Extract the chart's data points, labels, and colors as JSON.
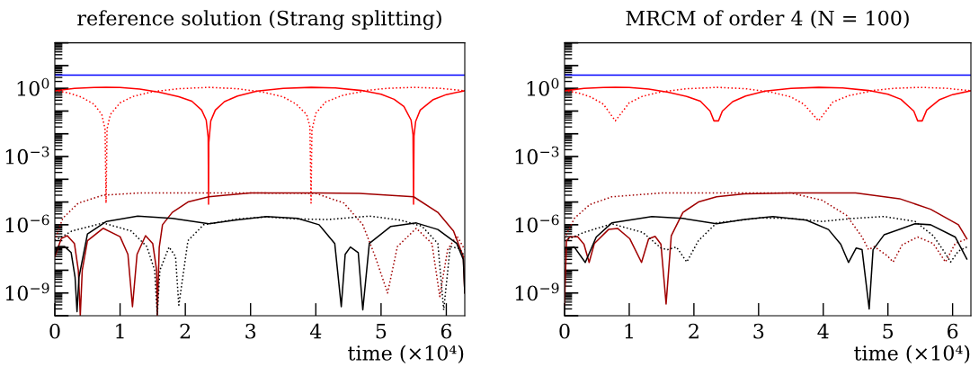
{
  "chart_data": [
    {
      "type": "line",
      "title": "reference solution (Strang splitting)",
      "xlabel": "time (×10⁴)",
      "log": "y",
      "xlim": [
        0,
        6.283
      ],
      "xticks": [
        0,
        1,
        2,
        3,
        4,
        5,
        6
      ],
      "ylim": [
        1e-10,
        100
      ],
      "yticks": [
        {
          "value": 1e-10,
          "label": null
        },
        {
          "value": 1e-09,
          "label": "10$^{−9}$"
        },
        {
          "value": 1e-08,
          "label": null
        },
        {
          "value": 1e-07,
          "label": null
        },
        {
          "value": 1e-06,
          "label": "10$^{−6}$"
        },
        {
          "value": 1e-05,
          "label": null
        },
        {
          "value": 0.0001,
          "label": null
        },
        {
          "value": 0.001,
          "label": "10$^{−3}$"
        },
        {
          "value": 0.01,
          "label": null
        },
        {
          "value": 0.1,
          "label": null
        },
        {
          "value": 1,
          "label": "10$^{0}$"
        },
        {
          "value": 10,
          "label": null
        },
        {
          "value": 100,
          "label": null
        }
      ],
      "series": [
        {
          "color": "#0000ff",
          "line_style": "solid",
          "x": [
            0,
            6.283
          ],
          "values": [
            3.8,
            3.8
          ]
        },
        {
          "color": "#ff0000",
          "line_style": "solid",
          "x": [
            0,
            0.3,
            0.6,
            0.785,
            1.0,
            1.3,
            1.6,
            1.9,
            2.1,
            2.25,
            2.32,
            2.35,
            2.356,
            2.36,
            2.39,
            2.46,
            2.6,
            2.8,
            3.1,
            3.5,
            3.93,
            4.3,
            4.7,
            5.0,
            5.2,
            5.35,
            5.46,
            5.49,
            5.498,
            5.505,
            5.53,
            5.6,
            5.8,
            6.0,
            6.283
          ],
          "values": [
            0.78,
            1.0,
            1.09,
            1.1,
            1.08,
            0.92,
            0.68,
            0.43,
            0.27,
            0.11,
            0.04,
            0.007,
            8e-06,
            0.004,
            0.037,
            0.11,
            0.26,
            0.46,
            0.75,
            1.0,
            1.1,
            1.03,
            0.8,
            0.55,
            0.33,
            0.16,
            0.04,
            0.009,
            8e-06,
            0.008,
            0.035,
            0.11,
            0.32,
            0.53,
            0.78
          ]
        },
        {
          "color": "#ff0000",
          "line_style": "dotted",
          "x": [
            0,
            0.2,
            0.4,
            0.6,
            0.72,
            0.77,
            0.785,
            0.8,
            0.85,
            1.0,
            1.2,
            1.5,
            1.9,
            2.36,
            2.8,
            3.2,
            3.5,
            3.7,
            3.86,
            3.91,
            3.927,
            3.94,
            4.0,
            4.15,
            4.4,
            4.8,
            5.1,
            5.5,
            5.9,
            6.283
          ],
          "values": [
            0.78,
            0.64,
            0.42,
            0.2,
            0.07,
            0.016,
            9e-06,
            0.016,
            0.07,
            0.23,
            0.44,
            0.71,
            0.96,
            1.1,
            0.96,
            0.67,
            0.42,
            0.2,
            0.07,
            0.02,
            9e-06,
            0.014,
            0.08,
            0.25,
            0.48,
            0.82,
            1.0,
            1.1,
            1.0,
            0.78
          ]
        },
        {
          "color": "#a00000",
          "line_style": "solid",
          "x": [
            0,
            0.1,
            0.19,
            0.3,
            0.36,
            0.39,
            0.42,
            0.5,
            0.74,
            1.0,
            1.12,
            1.19,
            1.26,
            1.39,
            1.5,
            1.56,
            1.57,
            1.6,
            1.65,
            1.8,
            2.04,
            2.36,
            3.0,
            4.0,
            4.67,
            5.5,
            5.87,
            6.11,
            6.26,
            6.283
          ],
          "values": [
            4e-08,
            2.5e-07,
            3.3e-07,
            1.5e-07,
            1e-08,
            1e-10,
            1e-08,
            2e-07,
            7e-07,
            3e-07,
            5e-08,
            2.5e-10,
            5e-08,
            3.3e-07,
            1.5e-07,
            1e-08,
            1e-10,
            1e-07,
            1e-06,
            3.5e-06,
            1e-05,
            1.7e-05,
            2.5e-05,
            2.5e-05,
            2.4e-05,
            1.7e-05,
            3.5e-06,
            5.3e-07,
            4e-08,
            1e-09
          ]
        },
        {
          "color": "#a00000",
          "line_style": "dotted",
          "x": [
            0,
            0.12,
            0.36,
            0.74,
            1.3,
            2.0,
            3.0,
            4.0,
            4.43,
            4.72,
            4.91,
            5.1,
            5.25,
            5.54,
            5.78,
            5.9,
            6.02,
            6.16,
            6.283
          ],
          "values": [
            2e-07,
            1.9e-06,
            9e-06,
            2e-05,
            2.5e-05,
            2.5e-05,
            2.5e-05,
            2.4e-05,
            9e-06,
            1e-06,
            4e-08,
            1e-09,
            1.1e-07,
            7e-07,
            1.5e-07,
            7e-10,
            8e-08,
            3.3e-07,
            8e-08
          ]
        },
        {
          "color": "#000000",
          "line_style": "solid",
          "x": [
            0,
            0.05,
            0.15,
            0.25,
            0.31,
            0.34,
            0.37,
            0.5,
            0.79,
            1.27,
            1.8,
            2.36,
            2.76,
            3.24,
            3.72,
            4.05,
            4.29,
            4.39,
            4.45,
            4.53,
            4.65,
            4.72,
            4.82,
            5.15,
            5.54,
            5.87,
            6.16,
            6.26,
            6.283
          ],
          "values": [
            5e-08,
            1.1e-07,
            1.1e-07,
            6e-08,
            5e-09,
            1.5e-10,
            5e-09,
            3.9e-07,
            1.4e-06,
            2.4e-06,
            1.9e-06,
            1.1e-06,
            1.6e-06,
            2.3e-06,
            1.9e-06,
            1e-06,
            1.5e-07,
            2.5e-10,
            5e-08,
            1.05e-07,
            6e-08,
            1.8e-10,
            1.5e-07,
            8.5e-07,
            1.2e-06,
            6.2e-07,
            1.5e-07,
            3e-08,
            1e-09
          ]
        },
        {
          "color": "#000000",
          "line_style": "dotted",
          "x": [
            0,
            0.26,
            0.74,
            1.17,
            1.41,
            1.53,
            1.57,
            1.61,
            1.75,
            1.85,
            1.9,
            2.04,
            2.28,
            2.8,
            3.24,
            3.72,
            4.19,
            4.82,
            5.3,
            5.63,
            5.87,
            5.96,
            6.06,
            6.2,
            6.283
          ],
          "values": [
            2e-07,
            5.3e-07,
            1.2e-06,
            5.3e-07,
            1.1e-07,
            1e-08,
            1.1e-10,
            1e-08,
            1.05e-07,
            4e-08,
            2.9e-10,
            2e-07,
            1e-06,
            1.8e-06,
            2.2e-06,
            1.8e-06,
            1.7e-06,
            2.4e-06,
            1.6e-06,
            8.5e-07,
            1.5e-07,
            1.8e-10,
            1.1e-07,
            9e-08,
            4e-08
          ]
        }
      ]
    },
    {
      "type": "line",
      "title": "MRCM of order 4 (N = 100)",
      "xlabel": "time (×10⁴)",
      "log": "y",
      "xlim": [
        0,
        6.283
      ],
      "xticks": [
        0,
        1,
        2,
        3,
        4,
        5,
        6
      ],
      "ylim": [
        1e-10,
        100
      ],
      "yticks": [
        {
          "value": 1e-10,
          "label": null
        },
        {
          "value": 1e-09,
          "label": "10$^{−9}$"
        },
        {
          "value": 1e-08,
          "label": null
        },
        {
          "value": 1e-07,
          "label": null
        },
        {
          "value": 1e-06,
          "label": "10$^{−6}$"
        },
        {
          "value": 1e-05,
          "label": null
        },
        {
          "value": 0.0001,
          "label": null
        },
        {
          "value": 0.001,
          "label": "10$^{−3}$"
        },
        {
          "value": 0.01,
          "label": null
        },
        {
          "value": 0.1,
          "label": null
        },
        {
          "value": 1,
          "label": "10$^{0}$"
        },
        {
          "value": 10,
          "label": null
        },
        {
          "value": 100,
          "label": null
        }
      ],
      "series": [
        {
          "color": "#0000ff",
          "line_style": "solid",
          "x": [
            0,
            6.283
          ],
          "values": [
            3.8,
            3.8
          ]
        },
        {
          "color": "#ff0000",
          "line_style": "solid",
          "x": [
            0,
            0.3,
            0.6,
            0.785,
            1.0,
            1.3,
            1.6,
            1.9,
            2.1,
            2.25,
            2.31,
            2.38,
            2.44,
            2.6,
            2.8,
            3.1,
            3.5,
            3.93,
            4.3,
            4.7,
            5.0,
            5.2,
            5.4,
            5.46,
            5.53,
            5.6,
            5.8,
            6.0,
            6.283
          ],
          "values": [
            0.78,
            1.0,
            1.09,
            1.1,
            1.08,
            0.92,
            0.68,
            0.43,
            0.27,
            0.1,
            0.037,
            0.037,
            0.1,
            0.26,
            0.46,
            0.75,
            1.0,
            1.1,
            1.03,
            0.8,
            0.55,
            0.33,
            0.1,
            0.037,
            0.037,
            0.11,
            0.32,
            0.53,
            0.78
          ]
        },
        {
          "color": "#ff0000",
          "line_style": "dotted",
          "x": [
            0,
            0.2,
            0.4,
            0.6,
            0.785,
            1.0,
            1.2,
            1.5,
            1.9,
            2.36,
            2.8,
            3.2,
            3.5,
            3.7,
            3.927,
            4.15,
            4.4,
            4.8,
            5.1,
            5.5,
            5.9,
            6.283
          ],
          "values": [
            0.78,
            0.64,
            0.42,
            0.2,
            0.037,
            0.23,
            0.44,
            0.71,
            0.96,
            1.1,
            0.96,
            0.67,
            0.42,
            0.2,
            0.037,
            0.25,
            0.48,
            0.82,
            1.0,
            1.1,
            1.0,
            0.78
          ]
        },
        {
          "color": "#a00000",
          "line_style": "solid",
          "x": [
            0,
            0.03,
            0.08,
            0.2,
            0.3,
            0.38,
            0.46,
            0.68,
            0.82,
            1.01,
            1.19,
            1.3,
            1.4,
            1.49,
            1.57,
            1.65,
            1.83,
            2.07,
            2.35,
            2.78,
            3.5,
            4.5,
            5.18,
            5.66,
            6.09,
            6.22
          ],
          "values": [
            3e-10,
            2e-07,
            2.9e-07,
            3e-07,
            1.4e-07,
            2.2e-08,
            1.5e-07,
            6.2e-07,
            6.9e-07,
            2.4e-07,
            2.2e-08,
            2.4e-07,
            3.1e-07,
            1.4e-07,
            3.3e-10,
            3.3e-07,
            3.5e-06,
            1e-05,
            1.7e-05,
            2.3e-05,
            2.5e-05,
            2.5e-05,
            1.4e-05,
            4.8e-06,
            1e-06,
            2.4e-07
          ]
        },
        {
          "color": "#a00000",
          "line_style": "dotted",
          "x": [
            0,
            0.15,
            0.39,
            0.73,
            1.5,
            2.5,
            3.5,
            3.98,
            4.36,
            4.6,
            4.7,
            4.79,
            4.99,
            5.08,
            5.22,
            5.46,
            5.7,
            5.89,
            6.04,
            6.22
          ],
          "values": [
            2.5e-07,
            1.9e-06,
            7.7e-06,
            1.7e-05,
            2.5e-05,
            2.5e-05,
            2.5e-05,
            1.2e-05,
            2.6e-06,
            2.9e-07,
            8e-08,
            1.1e-07,
            4.3e-08,
            2.3e-08,
            1.3e-07,
            2.9e-07,
            1.5e-07,
            2.3e-08,
            1.5e-07,
            2.4e-07
          ]
        },
        {
          "color": "#000000",
          "line_style": "solid",
          "x": [
            0,
            0.15,
            0.32,
            0.49,
            0.73,
            1.35,
            1.83,
            2.35,
            2.78,
            3.22,
            3.74,
            4.08,
            4.27,
            4.39,
            4.51,
            4.6,
            4.71,
            4.77,
            4.94,
            5.42,
            5.66,
            6.04,
            6.22
          ],
          "values": [
            9.5e-08,
            1.05e-07,
            2.2e-08,
            2.9e-07,
            1.2e-06,
            2.3e-06,
            1.9e-06,
            1.1e-06,
            1.7e-06,
            2.3e-06,
            1.6e-06,
            6.2e-07,
            1.4e-07,
            2.2e-08,
            9.5e-08,
            8e-08,
            2e-10,
            8e-08,
            3.6e-07,
            1.1e-06,
            1e-06,
            2.9e-07,
            3.1e-08
          ]
        },
        {
          "color": "#000000",
          "line_style": "dotted",
          "x": [
            0,
            0.3,
            0.73,
            1.21,
            1.49,
            1.59,
            1.73,
            1.89,
            2.07,
            2.35,
            3.02,
            3.5,
            3.98,
            4.46,
            4.94,
            5.42,
            5.7,
            5.85,
            5.97,
            6.09,
            6.22
          ],
          "values": [
            2e-07,
            4.6e-07,
            1.1e-06,
            4.6e-07,
            9.5e-08,
            8e-08,
            1.05e-07,
            2.3e-08,
            2e-07,
            1.2e-06,
            2e-06,
            1.9e-06,
            1.4e-06,
            1.9e-06,
            2.3e-06,
            1.4e-06,
            3.3e-07,
            8e-08,
            2.3e-08,
            7e-08,
            1.05e-07
          ]
        }
      ]
    }
  ]
}
